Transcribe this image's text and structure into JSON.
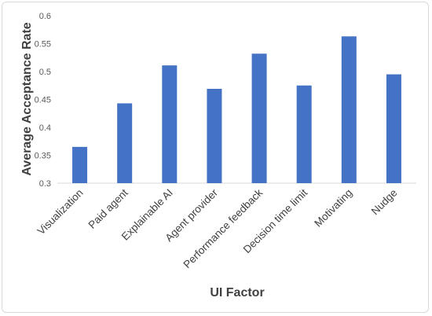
{
  "chart_data": {
    "type": "bar",
    "title": "",
    "xlabel": "UI Factor",
    "ylabel": "Average Acceptance Rate",
    "ylim": [
      0.3,
      0.6
    ],
    "yticks": [
      "0.3",
      "0.35",
      "0.4",
      "0.45",
      "0.5",
      "0.55",
      "0.6"
    ],
    "grid": false,
    "categories": [
      "Visualization",
      "Paid agent",
      "Explainable AI",
      "Agent provider",
      "Performance feedback",
      "Decision time limit",
      "Motivating",
      "Nudge"
    ],
    "values": [
      0.365,
      0.443,
      0.511,
      0.469,
      0.532,
      0.475,
      0.563,
      0.495
    ],
    "bar_color": "#4472C4",
    "axis_color": "#d9d9d9"
  }
}
